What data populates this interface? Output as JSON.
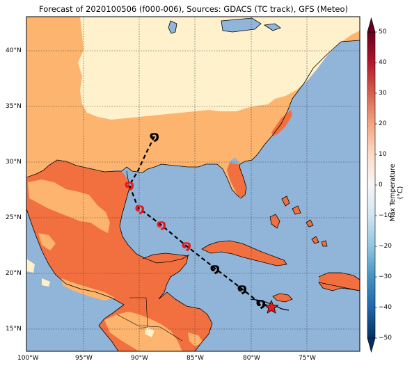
{
  "title": "Forecast of 2020100506 (f000-006), Sources: GDACS (TC track), GFS (Meteo)",
  "lat_labels": [
    "40°N",
    "35°N",
    "30°N",
    "25°N",
    "20°N",
    "15°N"
  ],
  "lon_labels": [
    "100°W",
    "95°W",
    "90°W",
    "85°W",
    "80°W",
    "75°W"
  ],
  "colorbar": {
    "title": "Max Temperature (°C)",
    "ticks": [
      "50",
      "40",
      "30",
      "20",
      "10",
      "0",
      "−10",
      "−20",
      "−30",
      "−40",
      "−50"
    ],
    "colors": [
      "#67001f",
      "#b2182b",
      "#d6604d",
      "#f4a582",
      "#fddbc7",
      "#f7f7f7",
      "#d1e5f0",
      "#92c5de",
      "#4393c3",
      "#2166ac",
      "#053061"
    ]
  },
  "legend_colors": {
    "ocean": "#91b4d9",
    "temp_10_20": "#fdb46e",
    "temp_20_30": "#f2703f",
    "temp_0_10": "#fff1cc",
    "track_past": "#000000",
    "track_forecast": "#e41a1c"
  }
}
